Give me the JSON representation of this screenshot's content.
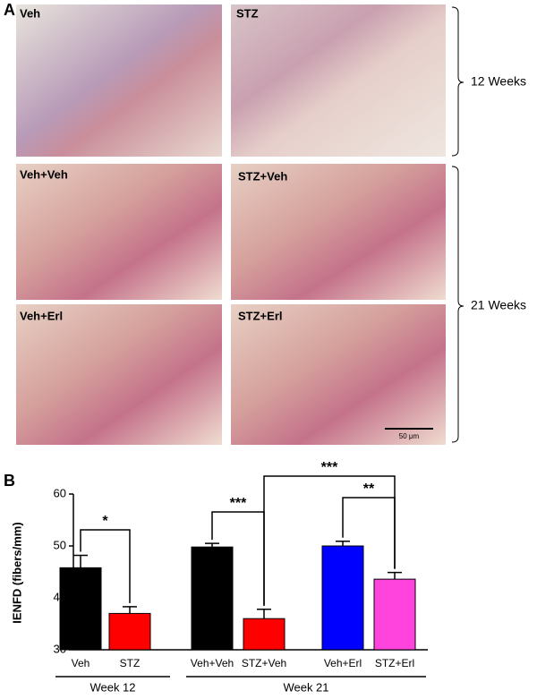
{
  "panel_a": {
    "label": "A",
    "images": [
      "Veh",
      "STZ",
      "Veh+Veh",
      "STZ+Veh",
      "Veh+Erl",
      "STZ+Erl"
    ],
    "groups": [
      "12 Weeks",
      "21 Weeks"
    ],
    "scale_bar": "50 μm"
  },
  "chart_data": {
    "type": "bar",
    "panel_label": "B",
    "ylabel": "IENFD (fibers/mm)",
    "categories": [
      "Veh",
      "STZ",
      "Veh+Veh",
      "STZ+Veh",
      "Veh+Erl",
      "STZ+Erl"
    ],
    "values": [
      45.8,
      37,
      49.8,
      36,
      50,
      43.6
    ],
    "errors": [
      2.4,
      1.3,
      0.7,
      1.8,
      0.9,
      1.3
    ],
    "colors": [
      "#000000",
      "#ff0000",
      "#000000",
      "#ff0000",
      "#0000ff",
      "#ff44dd"
    ],
    "ylim": [
      30,
      60
    ],
    "yticks": [
      30,
      40,
      50,
      60
    ],
    "groups": [
      "Week 12",
      "Week 21"
    ],
    "significance": [
      "*",
      "***",
      "***",
      "**"
    ]
  }
}
